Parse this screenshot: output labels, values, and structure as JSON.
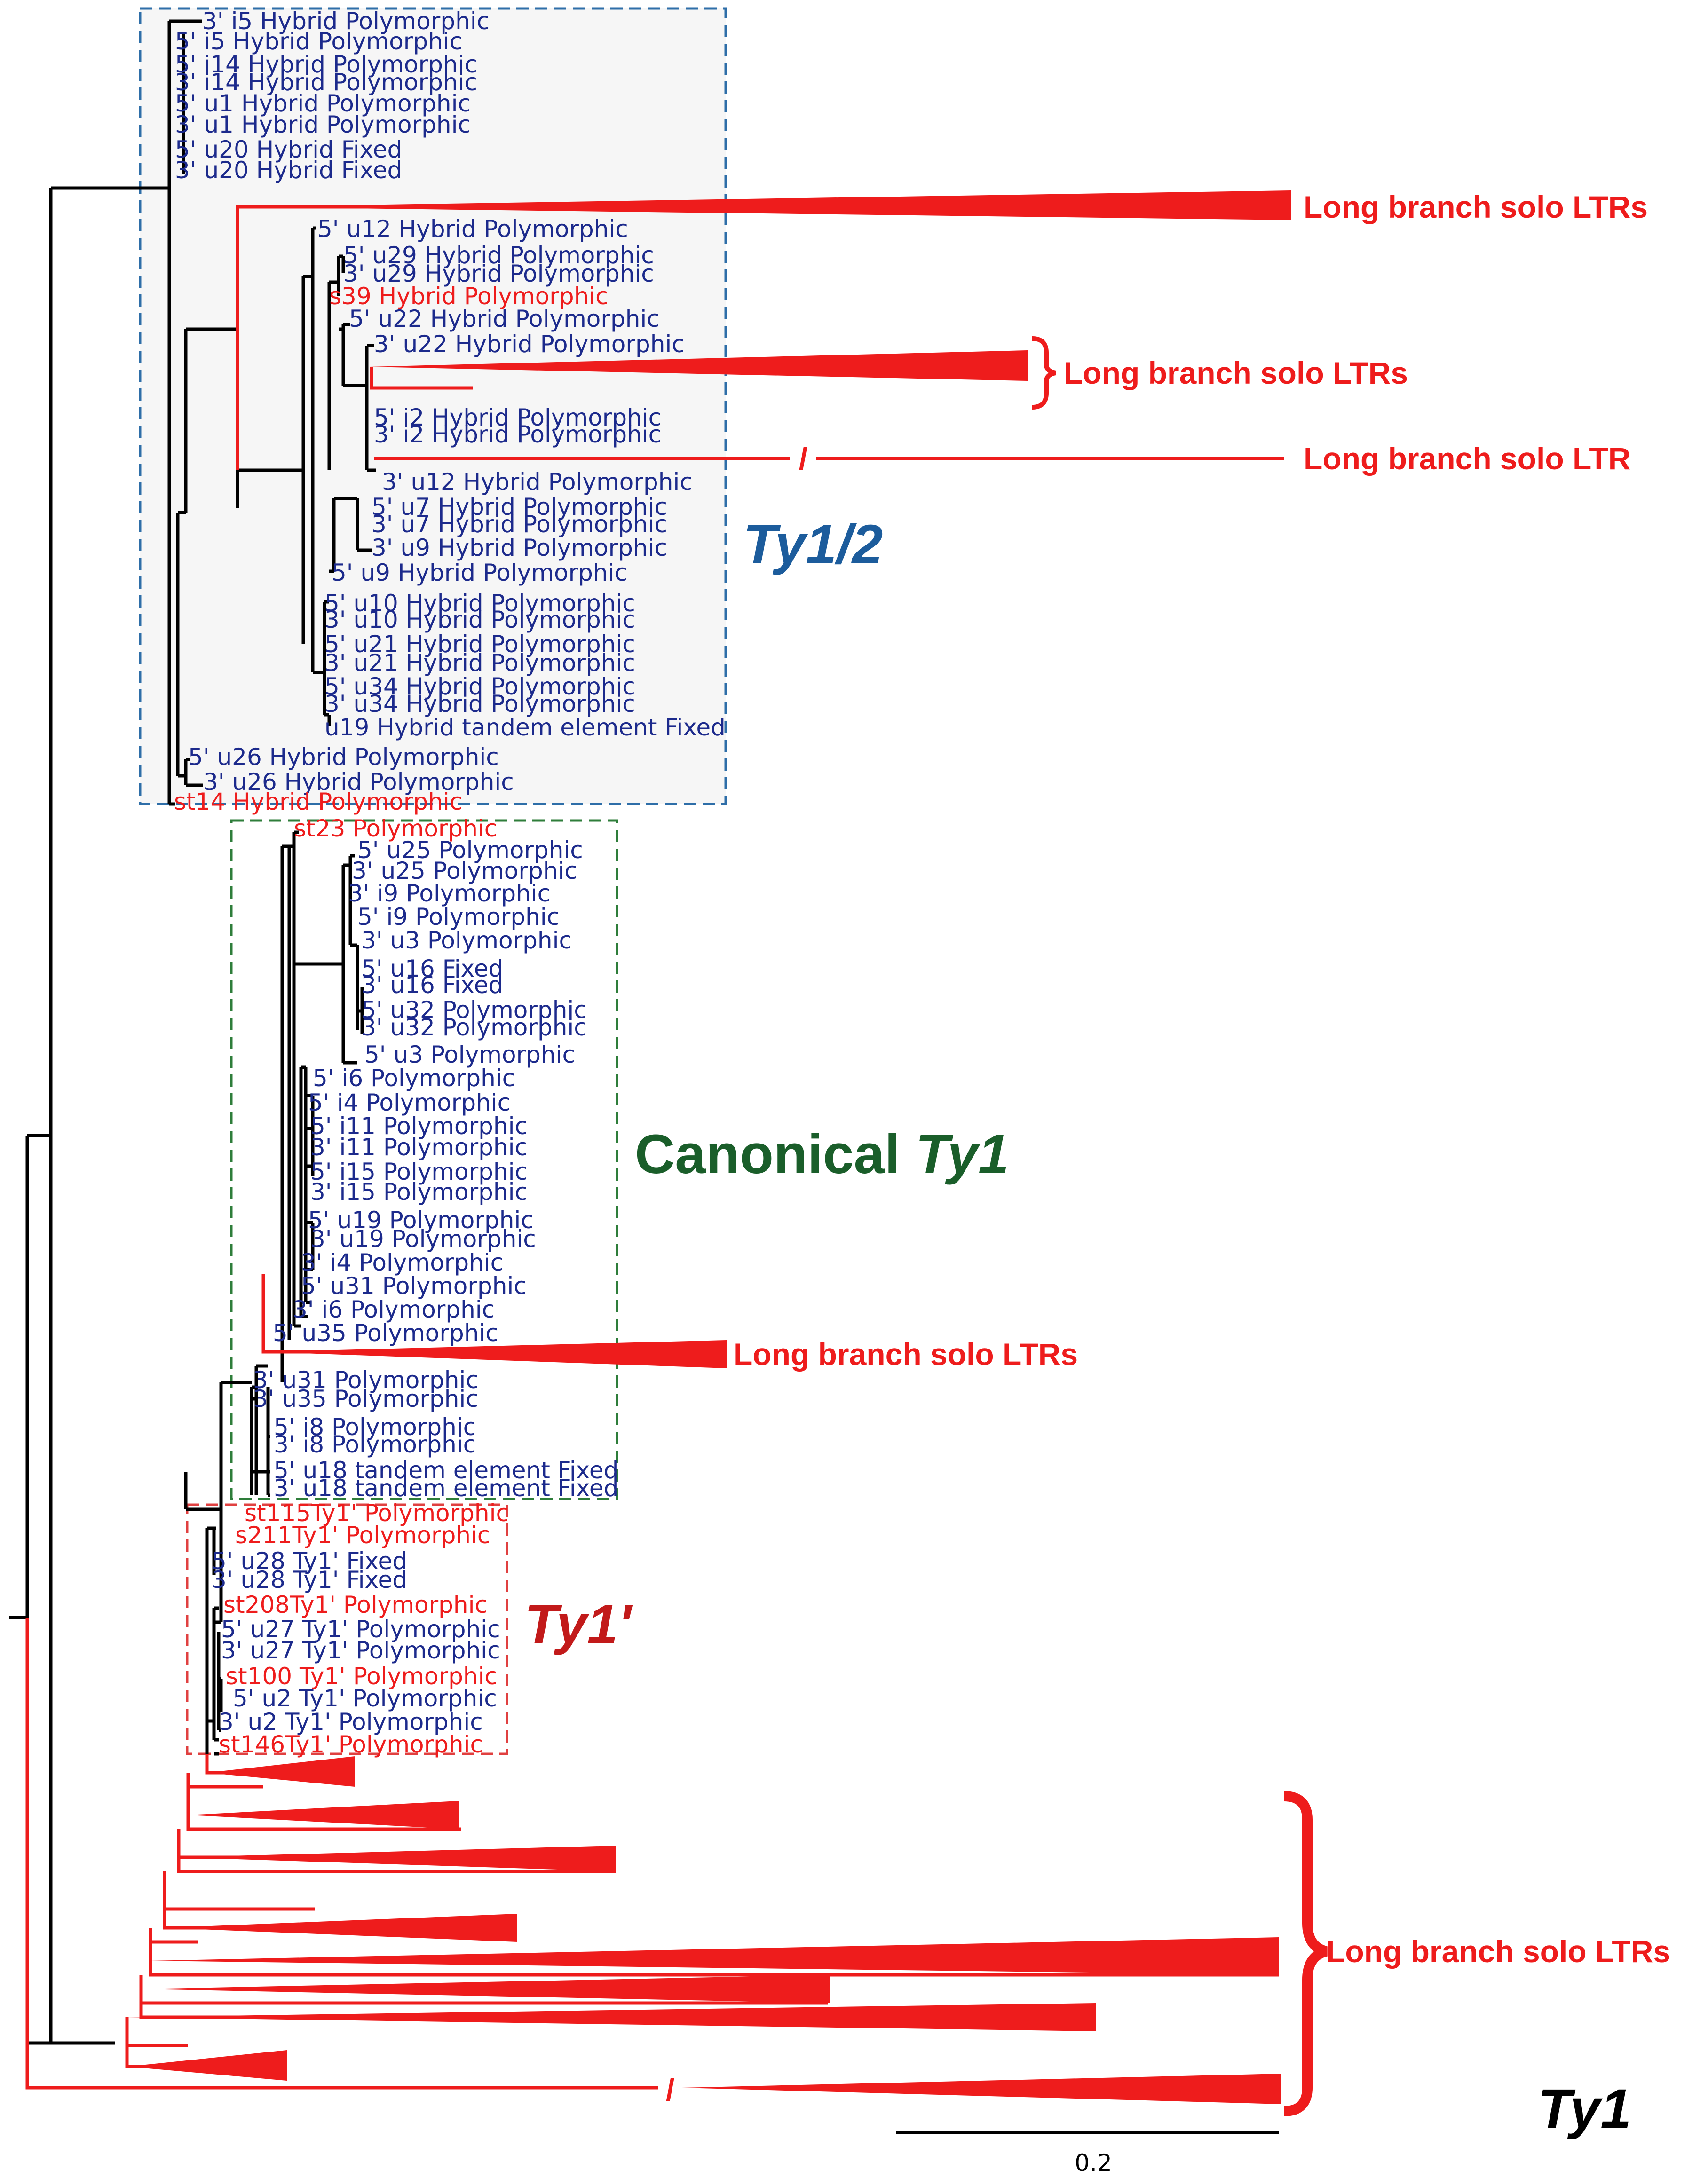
{
  "colors": {
    "branch": "#000000",
    "solo_ltr": "#ee1c1c",
    "leaf_blue": "#1c2a8c",
    "ty12_label": "#1c5c9c",
    "canonical_label": "#1a5e2a",
    "ty1prime_label": "#c21a1a",
    "ty12_box": "#2e6ea8",
    "canonical_box": "#2e7d3a",
    "ty1prime_box": "#e04040"
  },
  "clades": {
    "ty12": "Ty1/2",
    "canonical_prefix": "Canonical ",
    "canonical_italic": "Ty1",
    "ty1prime": "Ty1'",
    "root": "Ty1"
  },
  "annotations": {
    "long_branch_1": "Long branch solo LTRs",
    "long_branch_2": "Long branch solo LTRs",
    "long_branch_single": "Long branch solo LTR",
    "long_branch_canonical": "Long branch solo LTRs",
    "long_branch_bottom": "Long branch solo LTRs",
    "break_mark": "/"
  },
  "scale_bar": {
    "label": "0.2",
    "value": 0.2
  },
  "leaves": [
    {
      "text": "3' i5 Hybrid Polymorphic",
      "color": "blue"
    },
    {
      "text": "5' i5 Hybrid Polymorphic",
      "color": "blue"
    },
    {
      "text": "5' i14 Hybrid Polymorphic",
      "color": "blue"
    },
    {
      "text": "3' i14 Hybrid Polymorphic",
      "color": "blue"
    },
    {
      "text": "5' u1 Hybrid Polymorphic",
      "color": "blue"
    },
    {
      "text": "3' u1 Hybrid Polymorphic",
      "color": "blue"
    },
    {
      "text": "5' u20 Hybrid Fixed",
      "color": "blue"
    },
    {
      "text": "3' u20 Hybrid Fixed",
      "color": "blue"
    },
    {
      "text": "5' u12 Hybrid Polymorphic",
      "color": "blue"
    },
    {
      "text": "5' u29 Hybrid Polymorphic",
      "color": "blue"
    },
    {
      "text": "3' u29 Hybrid Polymorphic",
      "color": "blue"
    },
    {
      "text": "s39 Hybrid Polymorphic",
      "color": "red"
    },
    {
      "text": "5' u22 Hybrid Polymorphic",
      "color": "blue"
    },
    {
      "text": "3' u22 Hybrid Polymorphic",
      "color": "blue"
    },
    {
      "text": "5' i2 Hybrid Polymorphic",
      "color": "blue"
    },
    {
      "text": "3' i2 Hybrid Polymorphic",
      "color": "blue"
    },
    {
      "text": "3' u12 Hybrid Polymorphic",
      "color": "blue"
    },
    {
      "text": "5' u7 Hybrid Polymorphic",
      "color": "blue"
    },
    {
      "text": "3' u7 Hybrid Polymorphic",
      "color": "blue"
    },
    {
      "text": "3' u9 Hybrid Polymorphic",
      "color": "blue"
    },
    {
      "text": "5' u9 Hybrid Polymorphic",
      "color": "blue"
    },
    {
      "text": "5' u10 Hybrid Polymorphic",
      "color": "blue"
    },
    {
      "text": "3' u10 Hybrid Polymorphic",
      "color": "blue"
    },
    {
      "text": "5' u21 Hybrid Polymorphic",
      "color": "blue"
    },
    {
      "text": "3' u21 Hybrid Polymorphic",
      "color": "blue"
    },
    {
      "text": "5' u34 Hybrid Polymorphic",
      "color": "blue"
    },
    {
      "text": "3' u34 Hybrid Polymorphic",
      "color": "blue"
    },
    {
      "text": "u19 Hybrid tandem element Fixed",
      "color": "blue"
    },
    {
      "text": "5' u26 Hybrid Polymorphic",
      "color": "blue"
    },
    {
      "text": "3' u26 Hybrid Polymorphic",
      "color": "blue"
    },
    {
      "text": "st14 Hybrid Polymorphic",
      "color": "red"
    },
    {
      "text": "st23 Polymorphic",
      "color": "red"
    },
    {
      "text": "5' u25 Polymorphic",
      "color": "blue"
    },
    {
      "text": "3' u25 Polymorphic",
      "color": "blue"
    },
    {
      "text": "3' i9 Polymorphic",
      "color": "blue"
    },
    {
      "text": "5' i9 Polymorphic",
      "color": "blue"
    },
    {
      "text": "3' u3 Polymorphic",
      "color": "blue"
    },
    {
      "text": "5' u16 Fixed",
      "color": "blue"
    },
    {
      "text": "3' u16 Fixed",
      "color": "blue"
    },
    {
      "text": "5' u32 Polymorphic",
      "color": "blue"
    },
    {
      "text": "3' u32 Polymorphic",
      "color": "blue"
    },
    {
      "text": "5' u3 Polymorphic",
      "color": "blue"
    },
    {
      "text": "5' i6 Polymorphic",
      "color": "blue"
    },
    {
      "text": "5' i4 Polymorphic",
      "color": "blue"
    },
    {
      "text": "5' i11 Polymorphic",
      "color": "blue"
    },
    {
      "text": "3' i11 Polymorphic",
      "color": "blue"
    },
    {
      "text": "5' i15 Polymorphic",
      "color": "blue"
    },
    {
      "text": "3' i15 Polymorphic",
      "color": "blue"
    },
    {
      "text": "5' u19 Polymorphic",
      "color": "blue"
    },
    {
      "text": "3' u19 Polymorphic",
      "color": "blue"
    },
    {
      "text": "3' i4 Polymorphic",
      "color": "blue"
    },
    {
      "text": "5' u31 Polymorphic",
      "color": "blue"
    },
    {
      "text": "3' i6 Polymorphic",
      "color": "blue"
    },
    {
      "text": "5' u35 Polymorphic",
      "color": "blue"
    },
    {
      "text": "3' u31 Polymorphic",
      "color": "blue"
    },
    {
      "text": "3' u35 Polymorphic",
      "color": "blue"
    },
    {
      "text": "5' i8 Polymorphic",
      "color": "blue"
    },
    {
      "text": "3' i8 Polymorphic",
      "color": "blue"
    },
    {
      "text": "5' u18 tandem element Fixed",
      "color": "blue"
    },
    {
      "text": "3' u18 tandem element Fixed",
      "color": "blue"
    },
    {
      "text": "st115Ty1' Polymorphic",
      "color": "red"
    },
    {
      "text": "s211Ty1' Polymorphic",
      "color": "red"
    },
    {
      "text": "5' u28 Ty1'  Fixed",
      "color": "blue"
    },
    {
      "text": "3' u28 Ty1'  Fixed",
      "color": "blue"
    },
    {
      "text": "st208Ty1' Polymorphic",
      "color": "red"
    },
    {
      "text": "5' u27 Ty1' Polymorphic",
      "color": "blue"
    },
    {
      "text": "3' u27 Ty1'  Polymorphic",
      "color": "blue"
    },
    {
      "text": "st100 Ty1' Polymorphic",
      "color": "red"
    },
    {
      "text": "5' u2 Ty1'  Polymorphic",
      "color": "blue"
    },
    {
      "text": "3' u2 Ty1' Polymorphic",
      "color": "blue"
    },
    {
      "text": "st146Ty1' Polymorphic",
      "color": "red"
    }
  ]
}
